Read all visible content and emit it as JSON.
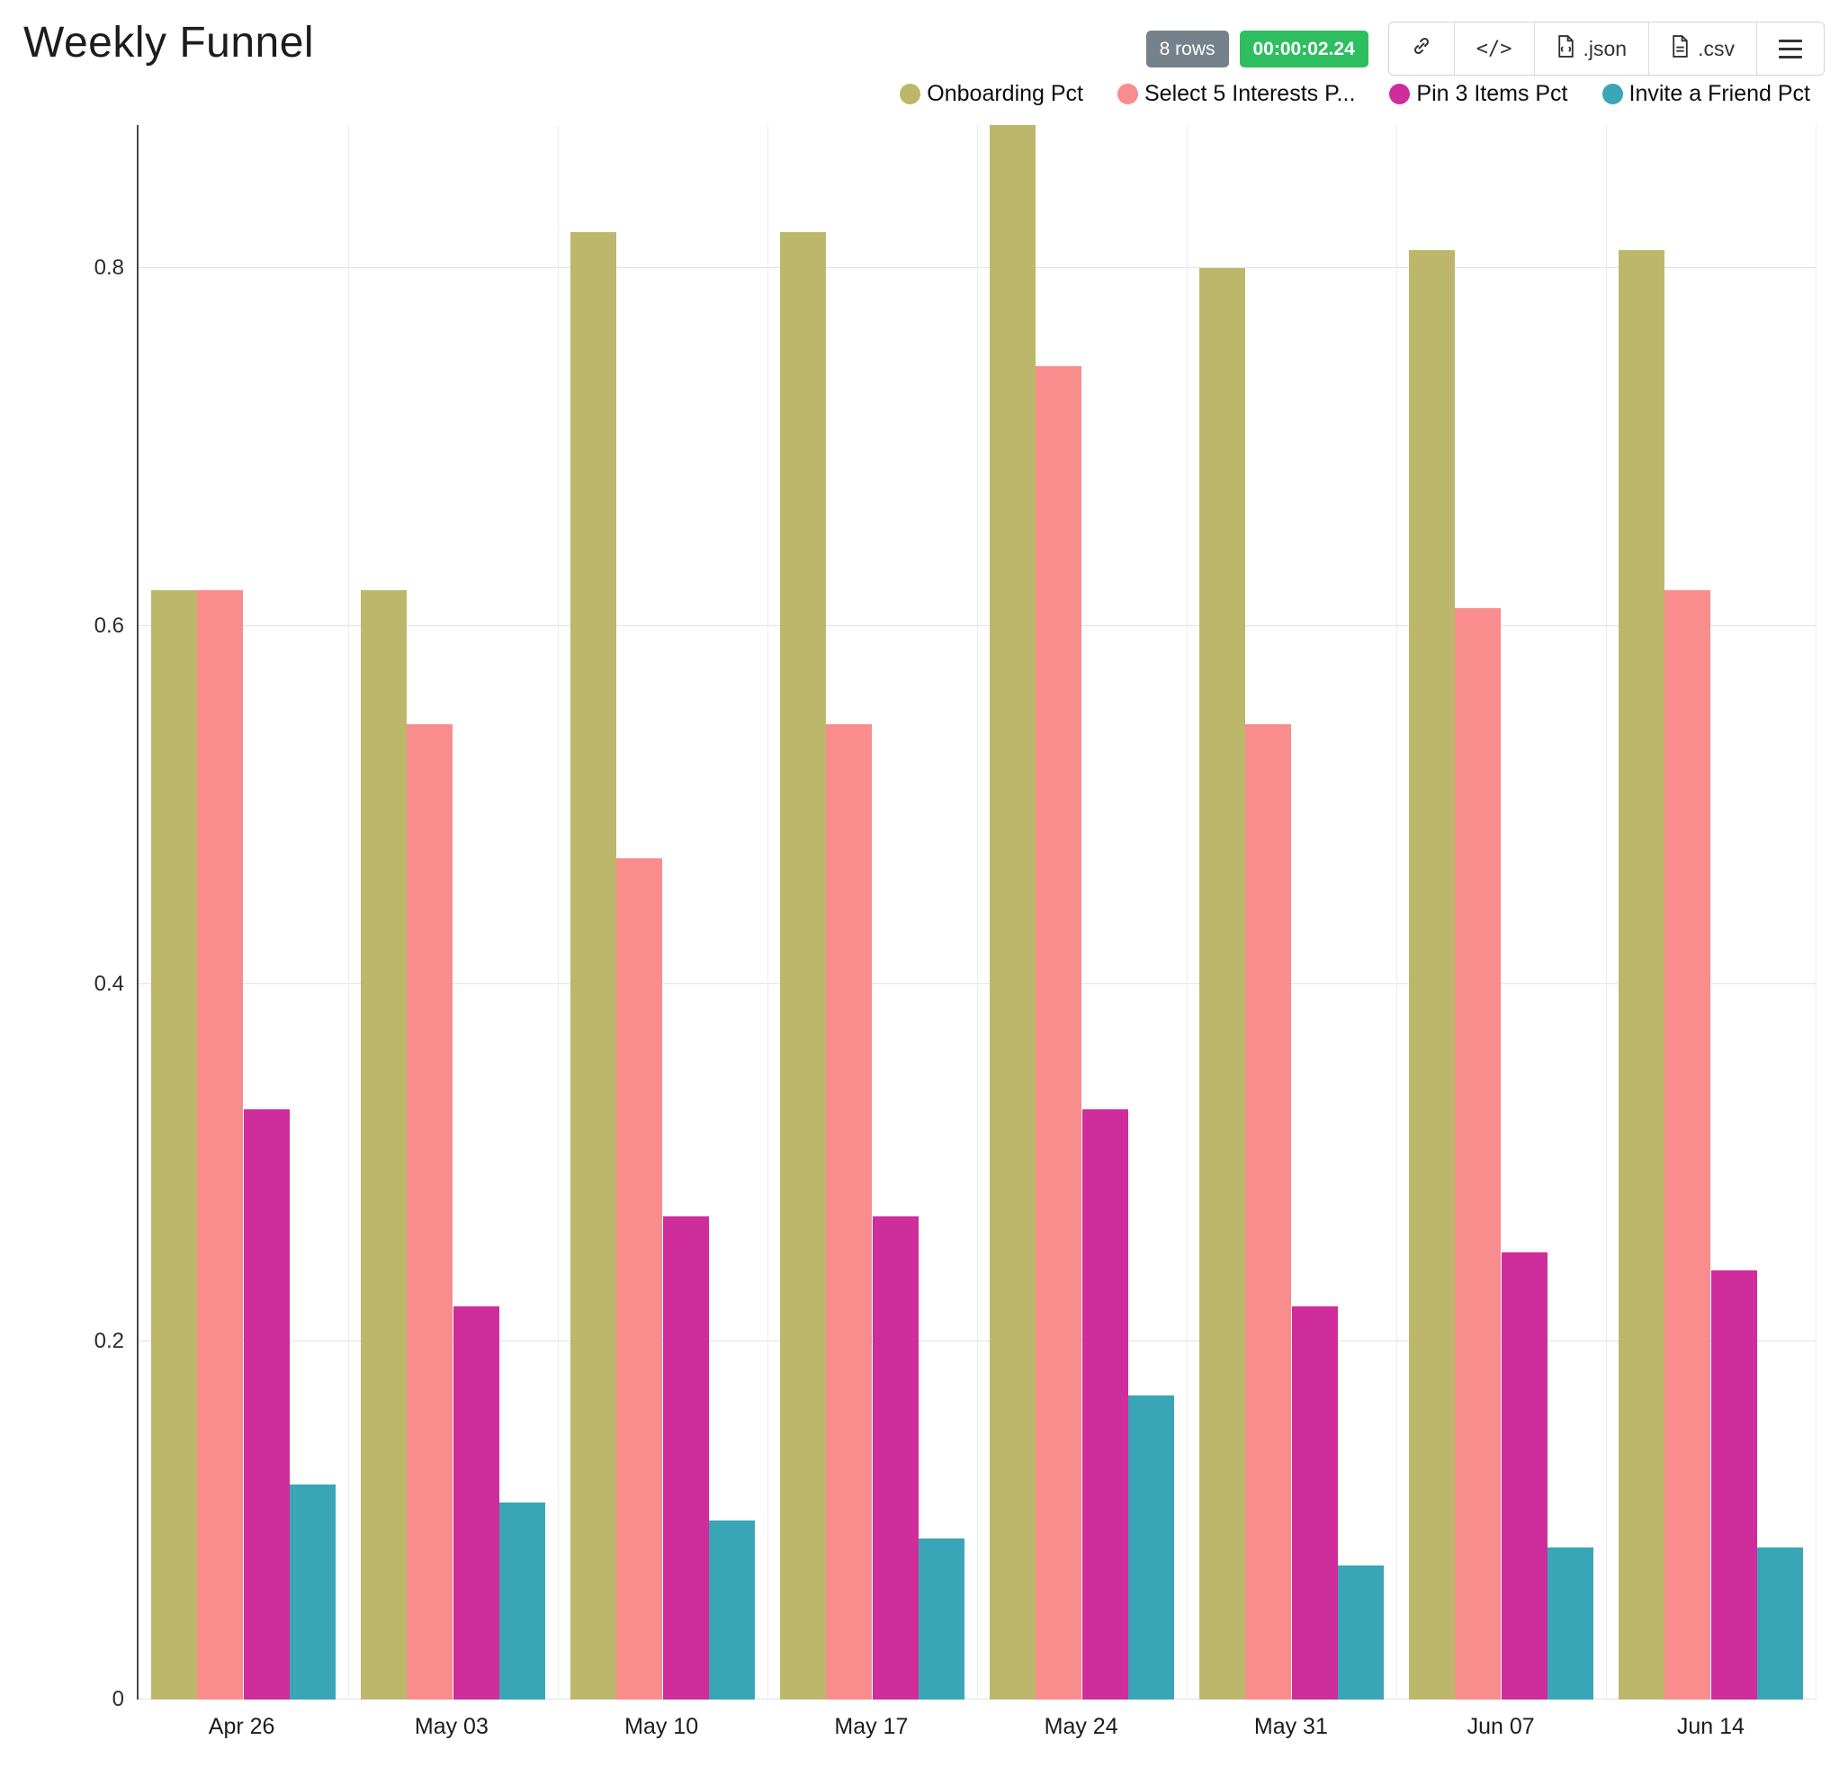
{
  "page": {
    "title": "Weekly Funnel"
  },
  "toolbar": {
    "rows_badge": "8 rows",
    "timer_badge": "00:00:02.24",
    "code_label": "</>",
    "json_label": ".json",
    "csv_label": ".csv"
  },
  "chart_data": {
    "type": "bar",
    "title": "Weekly Funnel",
    "categories": [
      "Apr 26",
      "May 03",
      "May 10",
      "May 17",
      "May 24",
      "May 31",
      "Jun 07",
      "Jun 14"
    ],
    "series": [
      {
        "name": "Onboarding Pct",
        "color": "#bdb76b",
        "values": [
          0.62,
          0.62,
          0.82,
          0.82,
          0.88,
          0.8,
          0.81,
          0.81
        ]
      },
      {
        "name": "Select 5 Interests P...",
        "color": "#f98c8c",
        "values": [
          0.62,
          0.545,
          0.47,
          0.545,
          0.745,
          0.545,
          0.61,
          0.62
        ]
      },
      {
        "name": "Pin 3 Items Pct",
        "color": "#ce2d9b",
        "values": [
          0.33,
          0.22,
          0.27,
          0.27,
          0.33,
          0.22,
          0.25,
          0.24
        ]
      },
      {
        "name": "Invite a Friend Pct",
        "color": "#39a6b7",
        "values": [
          0.12,
          0.11,
          0.1,
          0.09,
          0.17,
          0.075,
          0.085,
          0.085
        ]
      }
    ],
    "xlabel": "",
    "ylabel": "",
    "ylim": [
      0,
      0.88
    ],
    "yticks": [
      0,
      0.2,
      0.4,
      0.6,
      0.8
    ],
    "grid": true,
    "legend_position": "top-right"
  }
}
